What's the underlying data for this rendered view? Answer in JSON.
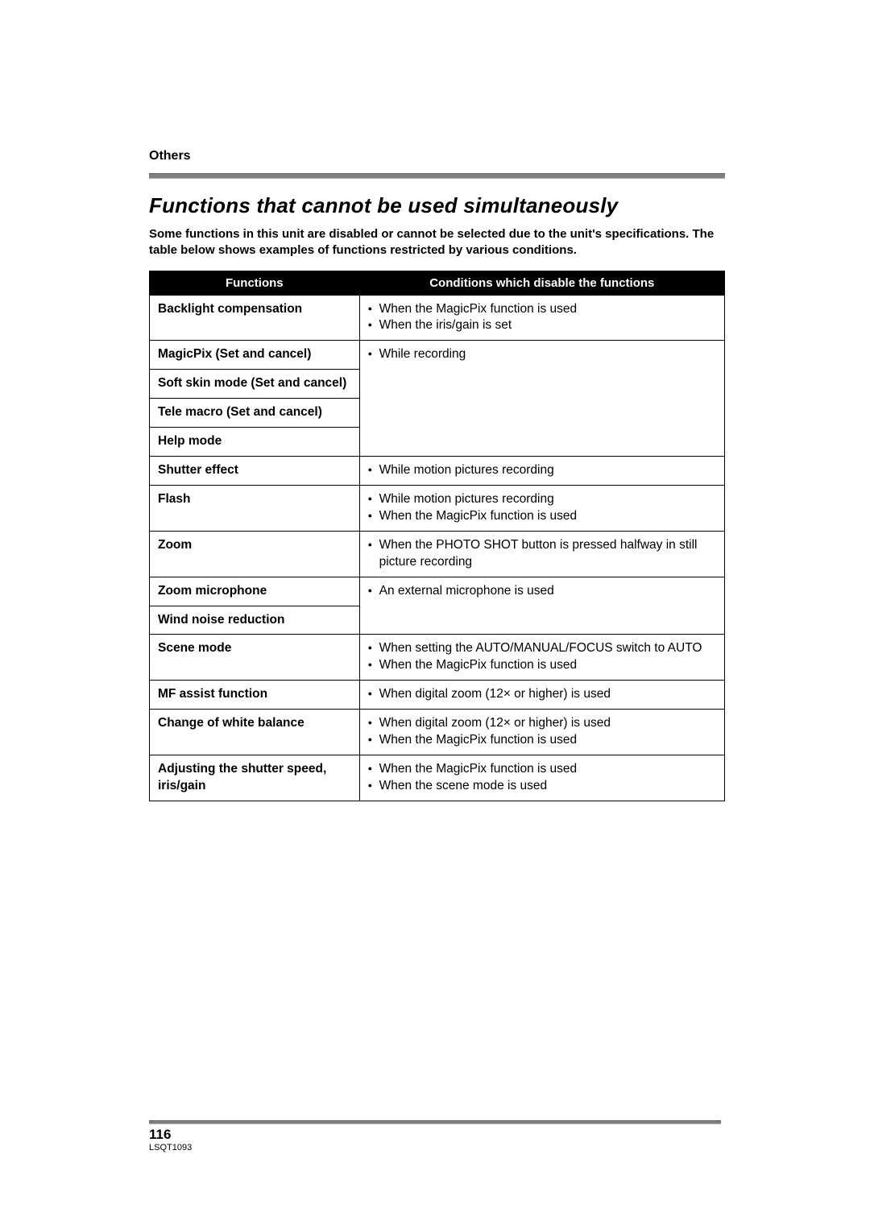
{
  "section_label": "Others",
  "title": "Functions that cannot be used simultaneously",
  "intro": "Some functions in this unit are disabled or cannot be selected due to the unit's specifications. The table below shows examples of functions restricted by various conditions.",
  "table": {
    "headers": {
      "c1": "Functions",
      "c2": "Conditions which disable the functions"
    },
    "rows": [
      {
        "fn": "Backlight compensation",
        "cond": [
          "When the MagicPix function is used",
          "When the iris/gain is set"
        ]
      },
      {
        "fn": "MagicPix (Set and cancel)",
        "cond": [
          "While recording"
        ],
        "group_start": true,
        "rowspan": 4
      },
      {
        "fn": "Soft skin mode (Set and cancel)",
        "merged": true
      },
      {
        "fn": "Tele macro (Set and cancel)",
        "merged": true
      },
      {
        "fn": "Help mode",
        "merged": true
      },
      {
        "fn": "Shutter effect",
        "cond": [
          "While motion pictures recording"
        ]
      },
      {
        "fn": "Flash",
        "cond": [
          "While motion pictures recording",
          "When the MagicPix function is used"
        ]
      },
      {
        "fn": "Zoom",
        "cond": [
          "When the PHOTO SHOT button is pressed halfway in still picture recording"
        ]
      },
      {
        "fn": "Zoom microphone",
        "cond": [
          "An external microphone is used"
        ],
        "group_start": true,
        "rowspan": 2
      },
      {
        "fn": "Wind noise reduction",
        "merged": true
      },
      {
        "fn": "Scene mode",
        "cond": [
          "When setting the AUTO/MANUAL/FOCUS switch to AUTO",
          "When the MagicPix function is used"
        ]
      },
      {
        "fn": "MF assist function",
        "cond": [
          "When digital zoom (12× or higher) is used"
        ]
      },
      {
        "fn": "Change of white balance",
        "cond": [
          "When digital zoom (12× or higher) is used",
          "When the MagicPix function is used"
        ]
      },
      {
        "fn": "Adjusting the shutter speed, iris/gain",
        "cond": [
          "When the MagicPix function is used",
          "When the scene mode is used"
        ]
      }
    ]
  },
  "footer": {
    "page": "116",
    "code": "LSQT1093"
  }
}
